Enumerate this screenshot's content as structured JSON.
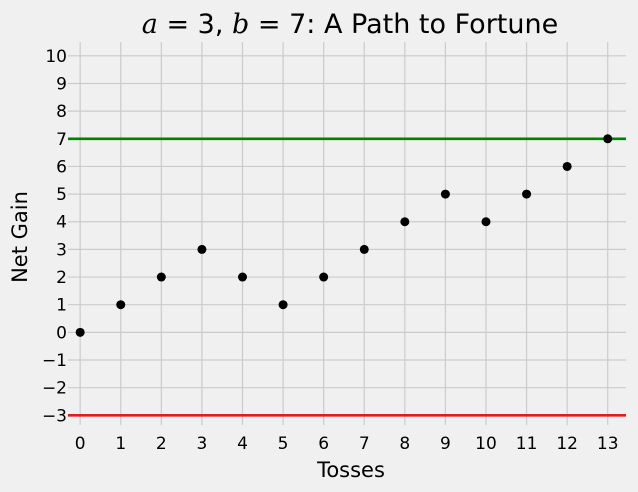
{
  "chart_data": {
    "type": "scatter",
    "title_parts": {
      "a_symbol": "a",
      "eq": " = ",
      "a_value": "3",
      "sep": ", ",
      "b_symbol": "b",
      "b_value": "7",
      "rest": ": A Path to Fortune"
    },
    "xlabel": "Tosses",
    "ylabel": "Net Gain",
    "x": [
      0,
      1,
      2,
      3,
      4,
      5,
      6,
      7,
      8,
      9,
      10,
      11,
      12,
      13
    ],
    "y": [
      0,
      1,
      2,
      3,
      2,
      1,
      2,
      3,
      4,
      5,
      4,
      5,
      6,
      7
    ],
    "xlim": [
      -0.3,
      13.45
    ],
    "ylim": [
      -3.35,
      10.5
    ],
    "xticks": [
      0,
      1,
      2,
      3,
      4,
      5,
      6,
      7,
      8,
      9,
      10,
      11,
      12,
      13
    ],
    "yticks": [
      -3,
      -2,
      -1,
      0,
      1,
      2,
      3,
      4,
      5,
      6,
      7,
      8,
      9,
      10
    ],
    "hlines": [
      {
        "y": 7,
        "color": "#008000"
      },
      {
        "y": -3,
        "color": "#e41a1c"
      }
    ],
    "marker_color": "#000000",
    "grid": true,
    "background": "#f0f0f0",
    "grid_color": "#cbcbcb"
  }
}
